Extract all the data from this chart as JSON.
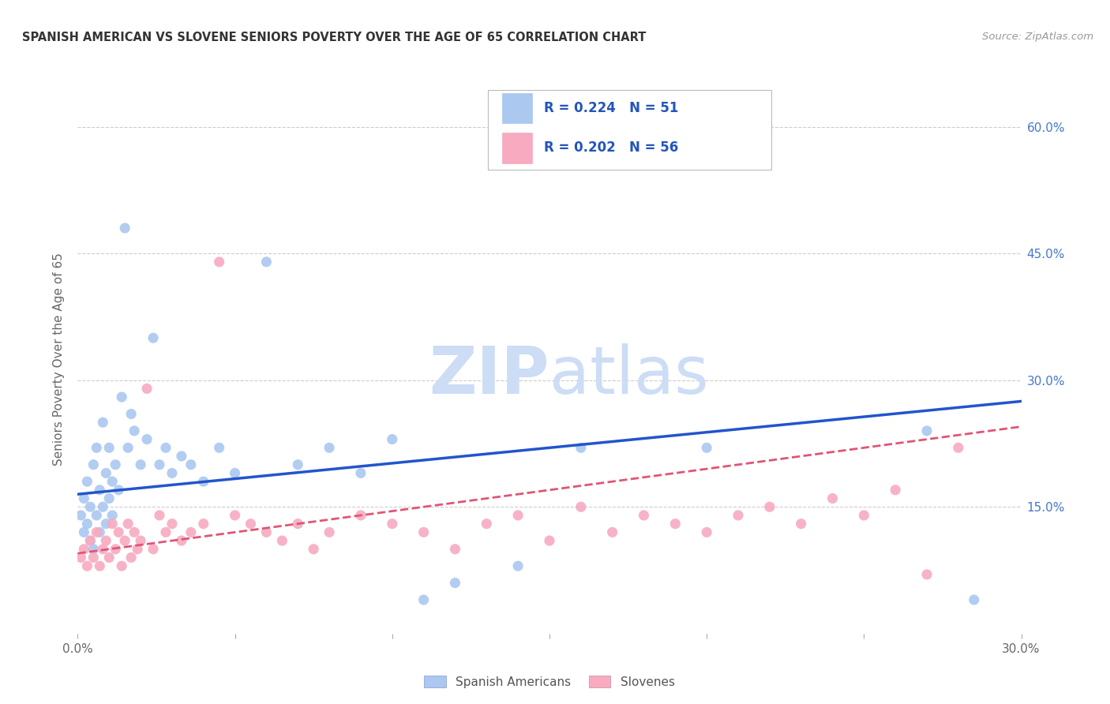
{
  "title": "SPANISH AMERICAN VS SLOVENE SENIORS POVERTY OVER THE AGE OF 65 CORRELATION CHART",
  "source": "Source: ZipAtlas.com",
  "xlim": [
    0.0,
    0.3
  ],
  "ylim": [
    0.0,
    0.65
  ],
  "x_ticks": [
    0.0,
    0.05,
    0.1,
    0.15,
    0.2,
    0.25,
    0.3
  ],
  "x_tick_labels": [
    "0.0%",
    "",
    "",
    "",
    "",
    "",
    "30.0%"
  ],
  "y_ticks_right": [
    0.15,
    0.3,
    0.45,
    0.6
  ],
  "y_tick_labels_right": [
    "15.0%",
    "30.0%",
    "45.0%",
    "60.0%"
  ],
  "R_spanish": 0.224,
  "N_spanish": 51,
  "R_slovene": 0.202,
  "N_slovene": 56,
  "ylabel": "Seniors Poverty Over the Age of 65",
  "spanish_color": "#aac8f0",
  "slovene_color": "#f8aac0",
  "spanish_line_color": "#2255cc",
  "slovene_line_color": "#e05575",
  "watermark_color": "#ccddf5",
  "background_color": "#ffffff",
  "grid_color": "#cccccc",
  "sp_line_x": [
    0.0,
    0.3
  ],
  "sp_line_y": [
    0.165,
    0.275
  ],
  "sl_line_x": [
    0.0,
    0.3
  ],
  "sl_line_y": [
    0.095,
    0.245
  ],
  "spanish_x": [
    0.001,
    0.002,
    0.002,
    0.003,
    0.003,
    0.004,
    0.004,
    0.005,
    0.005,
    0.006,
    0.006,
    0.007,
    0.007,
    0.008,
    0.008,
    0.009,
    0.009,
    0.01,
    0.01,
    0.011,
    0.011,
    0.012,
    0.013,
    0.014,
    0.015,
    0.016,
    0.017,
    0.018,
    0.02,
    0.022,
    0.024,
    0.026,
    0.028,
    0.03,
    0.033,
    0.036,
    0.04,
    0.045,
    0.05,
    0.06,
    0.07,
    0.08,
    0.09,
    0.1,
    0.11,
    0.12,
    0.14,
    0.16,
    0.2,
    0.27,
    0.285
  ],
  "spanish_y": [
    0.14,
    0.16,
    0.12,
    0.13,
    0.18,
    0.11,
    0.15,
    0.2,
    0.1,
    0.22,
    0.14,
    0.17,
    0.12,
    0.25,
    0.15,
    0.19,
    0.13,
    0.22,
    0.16,
    0.18,
    0.14,
    0.2,
    0.17,
    0.28,
    0.48,
    0.22,
    0.26,
    0.24,
    0.2,
    0.23,
    0.35,
    0.2,
    0.22,
    0.19,
    0.21,
    0.2,
    0.18,
    0.22,
    0.19,
    0.44,
    0.2,
    0.22,
    0.19,
    0.23,
    0.04,
    0.06,
    0.08,
    0.22,
    0.22,
    0.24,
    0.04
  ],
  "slovene_x": [
    0.001,
    0.002,
    0.003,
    0.004,
    0.005,
    0.006,
    0.007,
    0.008,
    0.009,
    0.01,
    0.011,
    0.012,
    0.013,
    0.014,
    0.015,
    0.016,
    0.017,
    0.018,
    0.019,
    0.02,
    0.022,
    0.024,
    0.026,
    0.028,
    0.03,
    0.033,
    0.036,
    0.04,
    0.045,
    0.05,
    0.055,
    0.06,
    0.065,
    0.07,
    0.075,
    0.08,
    0.09,
    0.1,
    0.11,
    0.12,
    0.13,
    0.14,
    0.15,
    0.16,
    0.17,
    0.18,
    0.19,
    0.2,
    0.21,
    0.22,
    0.23,
    0.24,
    0.25,
    0.26,
    0.27,
    0.28
  ],
  "slovene_y": [
    0.09,
    0.1,
    0.08,
    0.11,
    0.09,
    0.12,
    0.08,
    0.1,
    0.11,
    0.09,
    0.13,
    0.1,
    0.12,
    0.08,
    0.11,
    0.13,
    0.09,
    0.12,
    0.1,
    0.11,
    0.29,
    0.1,
    0.14,
    0.12,
    0.13,
    0.11,
    0.12,
    0.13,
    0.44,
    0.14,
    0.13,
    0.12,
    0.11,
    0.13,
    0.1,
    0.12,
    0.14,
    0.13,
    0.12,
    0.1,
    0.13,
    0.14,
    0.11,
    0.15,
    0.12,
    0.14,
    0.13,
    0.12,
    0.14,
    0.15,
    0.13,
    0.16,
    0.14,
    0.17,
    0.07,
    0.22
  ]
}
